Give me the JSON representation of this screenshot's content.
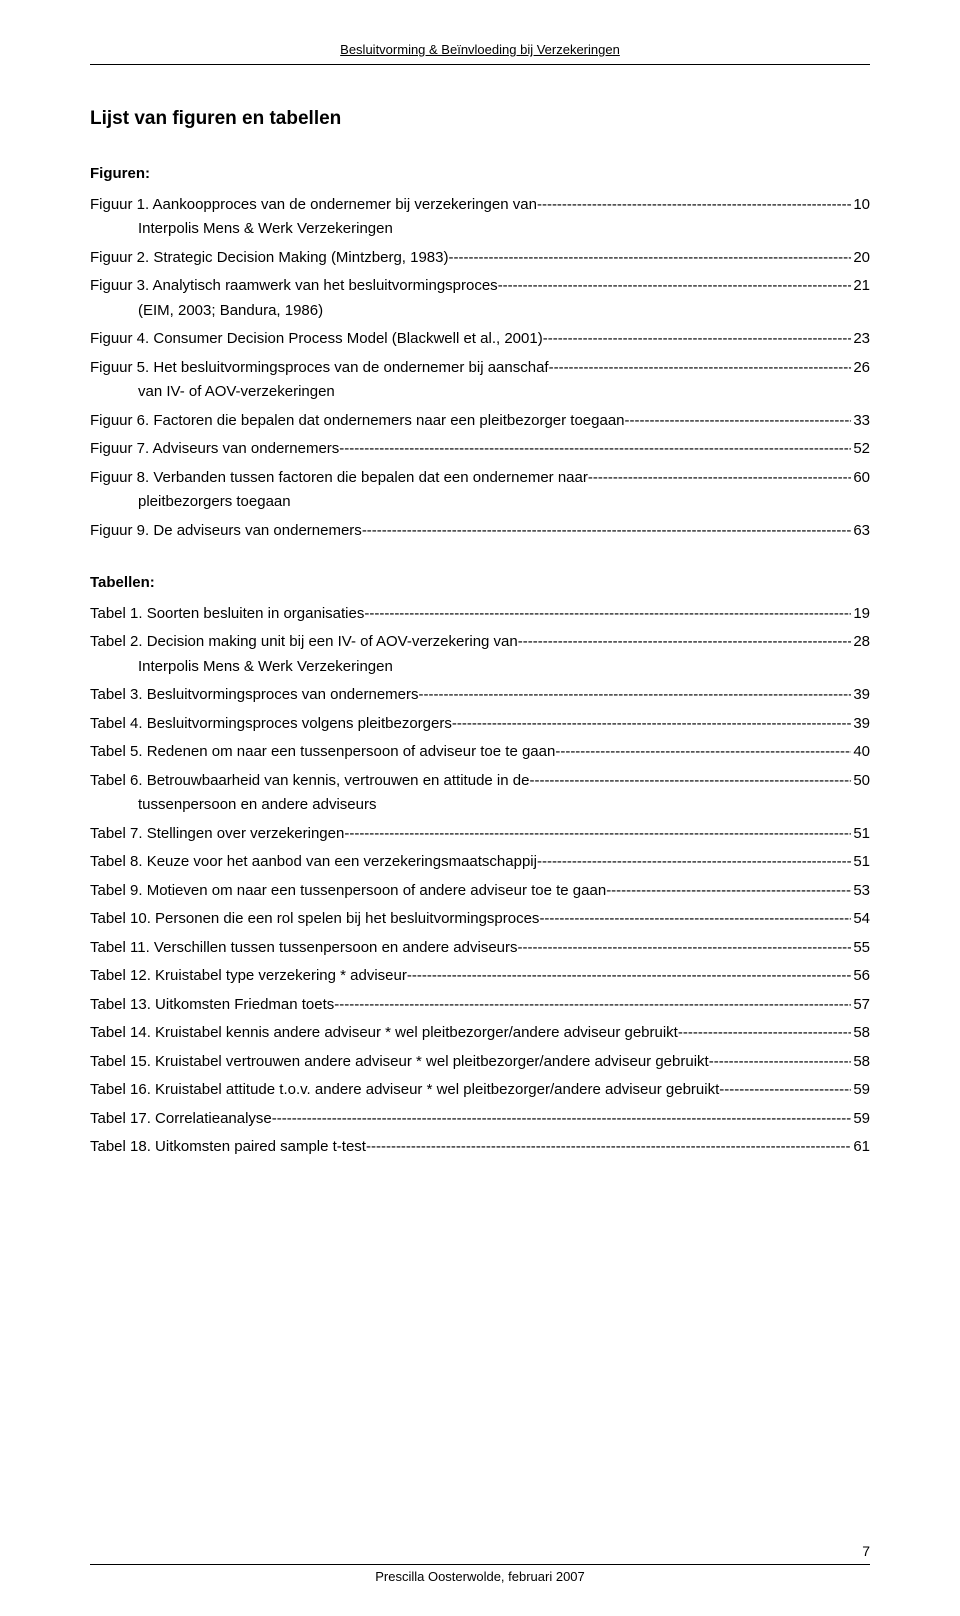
{
  "running_head": "Besluitvorming & Beïnvloeding bij Verzekeringen",
  "title": "Lijst van figuren en tabellen",
  "sections": {
    "figuren": {
      "heading": "Figuren:",
      "items": [
        {
          "label": "Figuur 1. Aankoopproces van de ondernemer bij verzekeringen van",
          "page": "10",
          "sub": "Interpolis Mens & Werk Verzekeringen"
        },
        {
          "label": "Figuur 2. Strategic Decision Making (Mintzberg, 1983)",
          "page": "20"
        },
        {
          "label": "Figuur 3. Analytisch raamwerk van het besluitvormingsproces",
          "page": "21",
          "sub": "(EIM, 2003; Bandura, 1986)"
        },
        {
          "label": "Figuur 4. Consumer Decision Process Model (Blackwell et al., 2001)",
          "page": "23"
        },
        {
          "label": "Figuur 5. Het besluitvormingsproces van de ondernemer bij aanschaf",
          "page": "26",
          "sub": "van IV- of AOV-verzekeringen"
        },
        {
          "label": "Figuur 6. Factoren die bepalen dat ondernemers naar een pleitbezorger toegaan",
          "page": "33"
        },
        {
          "label": "Figuur 7. Adviseurs van ondernemers",
          "page": "52"
        },
        {
          "label": "Figuur 8. Verbanden tussen factoren die bepalen dat een ondernemer naar",
          "page": "60",
          "sub": "pleitbezorgers toegaan"
        },
        {
          "label": "Figuur 9. De adviseurs van ondernemers",
          "page": "63"
        }
      ]
    },
    "tabellen": {
      "heading": "Tabellen:",
      "items": [
        {
          "label": "Tabel 1. Soorten besluiten in organisaties",
          "page": "19"
        },
        {
          "label": "Tabel 2. Decision making unit bij een IV- of AOV-verzekering van",
          "page": "28",
          "sub": "Interpolis Mens & Werk Verzekeringen"
        },
        {
          "label": "Tabel 3. Besluitvormingsproces van ondernemers",
          "page": "39"
        },
        {
          "label": "Tabel 4. Besluitvormingsproces volgens pleitbezorgers",
          "page": "39"
        },
        {
          "label": "Tabel 5. Redenen om naar een tussenpersoon of adviseur toe te gaan",
          "page": "40"
        },
        {
          "label": "Tabel 6. Betrouwbaarheid van kennis, vertrouwen en attitude in de",
          "page": "50",
          "sub": "tussenpersoon en andere adviseurs"
        },
        {
          "label": "Tabel 7. Stellingen over verzekeringen",
          "page": "51"
        },
        {
          "label": "Tabel 8. Keuze voor het aanbod van een verzekeringsmaatschappij",
          "page": "51"
        },
        {
          "label": "Tabel 9. Motieven om naar een tussenpersoon of andere adviseur toe te gaan",
          "page": "53"
        },
        {
          "label": "Tabel 10. Personen die een rol spelen bij het besluitvormingsproces",
          "page": "54"
        },
        {
          "label": "Tabel 11. Verschillen tussen tussenpersoon en andere adviseurs",
          "page": "55"
        },
        {
          "label": "Tabel 12. Kruistabel type verzekering * adviseur",
          "page": "56"
        },
        {
          "label": "Tabel 13. Uitkomsten Friedman toets",
          "page": "57"
        },
        {
          "label": "Tabel 14. Kruistabel kennis andere adviseur * wel pleitbezorger/andere adviseur gebruikt",
          "page": "58"
        },
        {
          "label": "Tabel 15. Kruistabel vertrouwen andere adviseur * wel pleitbezorger/andere adviseur gebruikt",
          "page": "58"
        },
        {
          "label": "Tabel 16. Kruistabel attitude t.o.v. andere adviseur * wel pleitbezorger/andere adviseur gebruikt",
          "page": "59"
        },
        {
          "label": "Tabel 17. Correlatieanalyse",
          "page": "59"
        },
        {
          "label": "Tabel 18. Uitkomsten paired sample t-test",
          "page": "61"
        }
      ]
    }
  },
  "footer": {
    "text": "Prescilla Oosterwolde, februari 2007",
    "page_number": "7"
  }
}
